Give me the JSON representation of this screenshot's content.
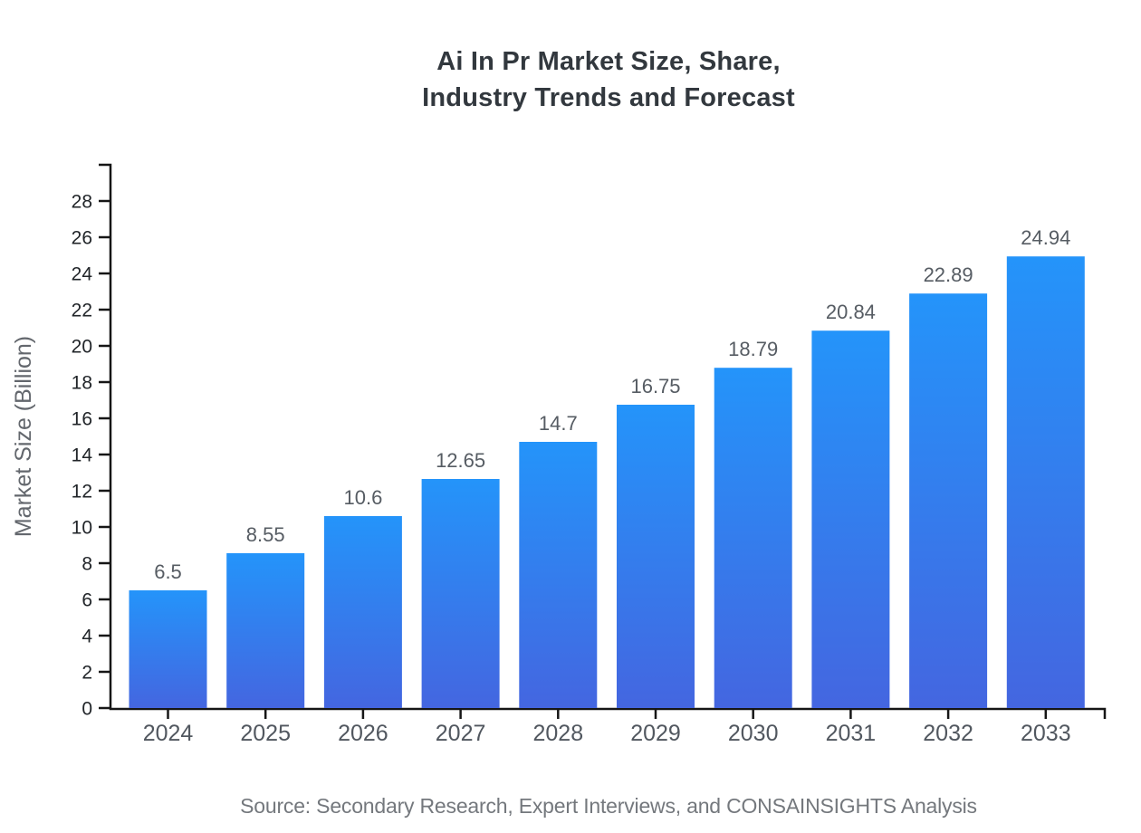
{
  "chart_data": {
    "type": "bar",
    "title": "Ai In Pr Market Size, Share, Industry Trends and Forecast",
    "title_lines": [
      "Ai In Pr Market Size, Share,",
      "Industry Trends and Forecast"
    ],
    "categories": [
      "2024",
      "2025",
      "2026",
      "2027",
      "2028",
      "2029",
      "2030",
      "2031",
      "2032",
      "2033"
    ],
    "values": [
      6.5,
      8.55,
      10.6,
      12.65,
      14.7,
      16.75,
      18.79,
      20.84,
      22.89,
      24.94
    ],
    "value_labels": [
      "6.5",
      "8.55",
      "10.6",
      "12.65",
      "14.7",
      "16.75",
      "18.79",
      "20.84",
      "22.89",
      "24.94"
    ],
    "xlabel": "",
    "ylabel": "Market Size (Billion)",
    "ylim": [
      0,
      30
    ],
    "ytick_step": 2,
    "ytick_max": 28,
    "grid": false,
    "legend": false
  },
  "source": {
    "text": "Source: Secondary Research, Expert Interviews, and CONSAINSIGHTS Analysis"
  },
  "palette": {
    "background": "#ffffff",
    "bar_gradient_top": "#2494fa",
    "bar_gradient_bottom": "#4466e0",
    "axis": "#161616",
    "title": "#32383e",
    "y_tick_label": "#212529",
    "x_tick_label": "#51575f",
    "value_label": "#565c63",
    "y_axis_title": "#63676d",
    "source_text": "#74787d"
  }
}
